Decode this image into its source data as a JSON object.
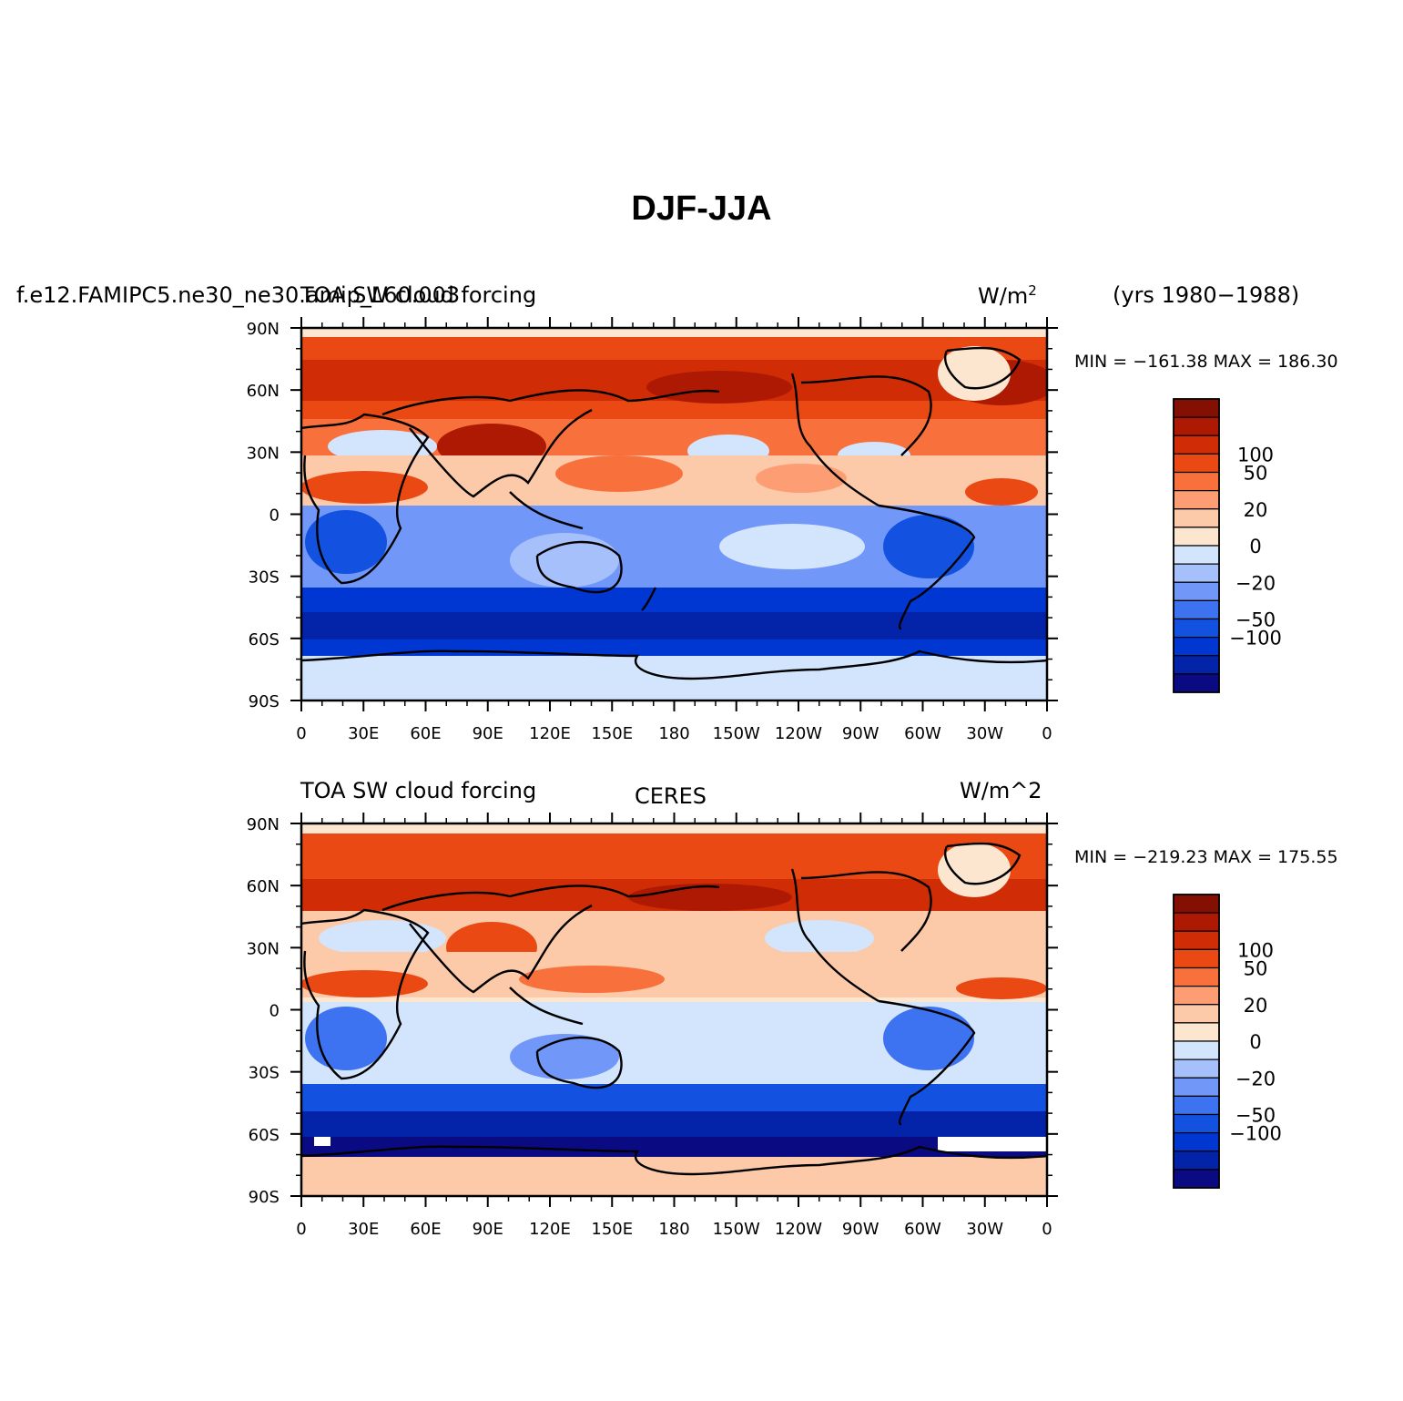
{
  "figure": {
    "title": "DJF-JJA"
  },
  "palette": [
    "#0a0a82",
    "#0323a8",
    "#0037d2",
    "#1352e0",
    "#3d73f0",
    "#7198f8",
    "#a6c0fc",
    "#d3e5fc",
    "#fde6d0",
    "#fcc9a9",
    "#fc9d74",
    "#f8703c",
    "#ea4914",
    "#d02c05",
    "#ae1903",
    "#841003"
  ],
  "colorbar": {
    "labels": [
      {
        "text": "100",
        "boundary": 13
      },
      {
        "text": "50",
        "boundary": 12
      },
      {
        "text": "20",
        "boundary": 10
      },
      {
        "text": "0",
        "boundary": 8
      },
      {
        "text": "−20",
        "boundary": 6
      },
      {
        "text": "−50",
        "boundary": 4
      },
      {
        "text": "−100",
        "boundary": 3
      }
    ]
  },
  "axes": {
    "lat_ticks": [
      "90N",
      "60N",
      "30N",
      "0",
      "30S",
      "60S",
      "90S"
    ],
    "lon_ticks": [
      "0",
      "30E",
      "60E",
      "90E",
      "120E",
      "150E",
      "180",
      "150W",
      "120W",
      "90W",
      "60W",
      "30W",
      "0"
    ]
  },
  "panels": [
    {
      "left": "f.e12.FAMIPC5.ne30_ne30.amip_L60.003",
      "center": "TOA SW cloud forcing",
      "units_base": "W/m",
      "units_sup": "2",
      "extra": "(yrs 1980−1988)",
      "stats": "MIN = −161.38  MAX = 186.30"
    },
    {
      "left": "TOA SW cloud forcing",
      "center": "CERES",
      "units_text": "W/m^2",
      "stats": "MIN = −219.23  MAX = 175.55"
    }
  ]
}
